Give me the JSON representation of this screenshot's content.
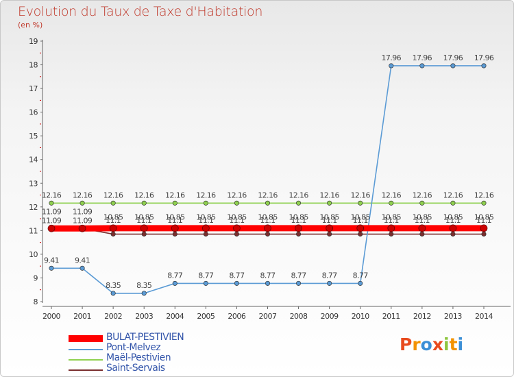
{
  "title": "Evolution du Taux de Taxe d'Habitation",
  "subtitle": "(en %)",
  "logo": {
    "text": [
      "P",
      "r",
      "o",
      "x",
      "i",
      "t",
      "i"
    ],
    "colors": [
      "#e84a1e",
      "#f39200",
      "#3c8fd6",
      "#e84a1e",
      "#8dc63f",
      "#f39200",
      "#3c8fd6"
    ]
  },
  "chart_data": {
    "type": "line",
    "title": "Evolution du Taux de Taxe d'Habitation",
    "ylabel": "(en %)",
    "x": [
      2000,
      2001,
      2002,
      2003,
      2004,
      2005,
      2006,
      2007,
      2008,
      2009,
      2010,
      2011,
      2012,
      2013,
      2014
    ],
    "ylim": [
      8,
      19
    ],
    "yticks": [
      8,
      9,
      10,
      11,
      12,
      13,
      14,
      15,
      16,
      17,
      18,
      19
    ],
    "grid": false,
    "legend_position": "bottom-left",
    "series": [
      {
        "name": "BULAT-PESTIVIEN",
        "color": "#ff0000",
        "values": [
          11.09,
          11.09,
          11.1,
          11.1,
          11.1,
          11.1,
          11.1,
          11.1,
          11.1,
          11.1,
          11.1,
          11.1,
          11.1,
          11.1,
          11.1
        ],
        "labels": [
          "11.09",
          "11.09",
          "11.1",
          "11.1",
          "11.1",
          "11.1",
          "11.1",
          "11.1",
          "11.1",
          "11.1",
          "11.1",
          "11.1",
          "11.1",
          "11.1",
          "11.1"
        ]
      },
      {
        "name": "Pont-Melvez",
        "color": "#5b9bd5",
        "values": [
          9.41,
          9.41,
          8.35,
          8.35,
          8.77,
          8.77,
          8.77,
          8.77,
          8.77,
          8.77,
          8.77,
          17.96,
          17.96,
          17.96,
          17.96
        ],
        "labels": [
          "9.41",
          "9.41",
          "8.35",
          "8.35",
          "8.77",
          "8.77",
          "8.77",
          "8.77",
          "8.77",
          "8.77",
          "8.77",
          "17.96",
          "17.96",
          "17.96",
          "17.96"
        ]
      },
      {
        "name": "Maël-Pestivien",
        "color": "#8fd14f",
        "values": [
          12.16,
          12.16,
          12.16,
          12.16,
          12.16,
          12.16,
          12.16,
          12.16,
          12.16,
          12.16,
          12.16,
          12.16,
          12.16,
          12.16,
          12.16
        ],
        "labels": [
          "12.16",
          "12.16",
          "12.16",
          "12.16",
          "12.16",
          "12.16",
          "12.16",
          "12.16",
          "12.16",
          "12.16",
          "12.16",
          "12.16",
          "12.16",
          "12.16",
          "12.16"
        ]
      },
      {
        "name": "Saint-Servais",
        "color": "#7a2e2e",
        "values": [
          11.09,
          11.09,
          10.85,
          10.85,
          10.85,
          10.85,
          10.85,
          10.85,
          10.85,
          10.85,
          10.85,
          10.85,
          10.85,
          10.85,
          10.85
        ],
        "labels": [
          "11.09",
          "11.09",
          "10.85",
          "10.85",
          "10.85",
          "10.85",
          "10.85",
          "10.85",
          "10.85",
          "10.85",
          "10.85",
          "10.85",
          "10.85",
          "10.85",
          "10.85"
        ]
      }
    ]
  }
}
